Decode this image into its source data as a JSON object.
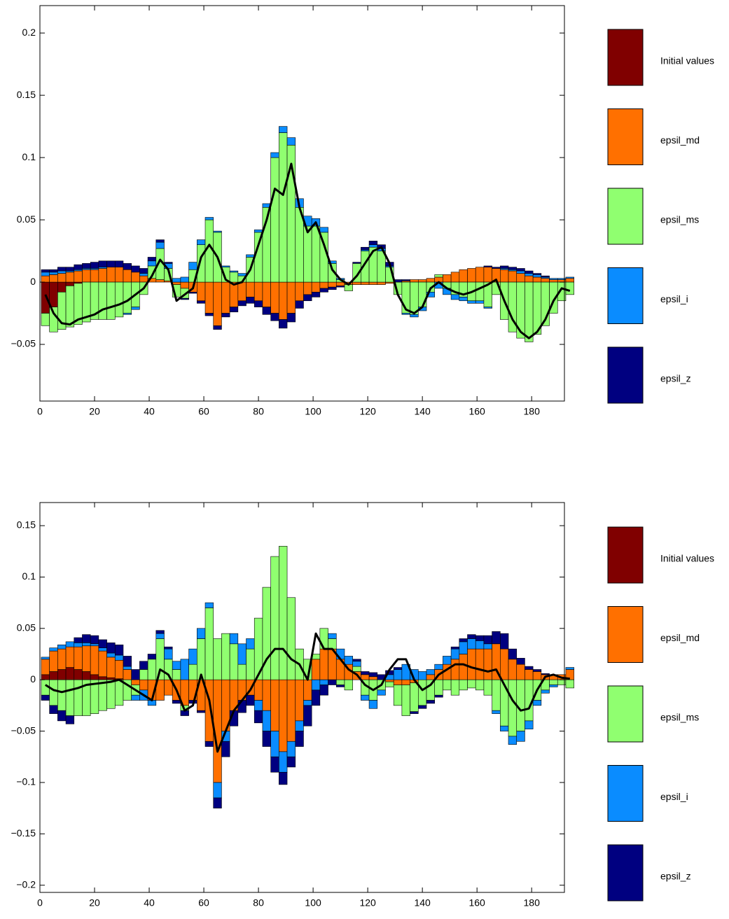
{
  "chart_data": [
    {
      "type": "bar",
      "stacked": true,
      "legend": "right",
      "grid": false,
      "xlim": [
        0,
        192
      ],
      "ylim": [
        -0.0955,
        0.222
      ],
      "xticks": [
        0,
        20,
        40,
        60,
        80,
        100,
        120,
        140,
        160,
        180
      ],
      "yticks": [
        {
          "value": -0.05,
          "label": "−0.05"
        },
        0,
        0.05,
        0.1,
        0.15,
        0.2
      ],
      "x": [
        2,
        5,
        8,
        11,
        14,
        17,
        20,
        23,
        26,
        29,
        32,
        35,
        38,
        41,
        44,
        47,
        50,
        53,
        56,
        59,
        62,
        65,
        68,
        71,
        74,
        77,
        80,
        83,
        86,
        89,
        92,
        95,
        98,
        101,
        104,
        107,
        110,
        113,
        116,
        119,
        122,
        125,
        128,
        131,
        134,
        137,
        140,
        143,
        146,
        149,
        152,
        155,
        158,
        161,
        164,
        167,
        170,
        173,
        176,
        179,
        182,
        185,
        188,
        191,
        194
      ],
      "series": [
        {
          "name": "Initial values",
          "color": "#800000",
          "values": [
            -0.025,
            -0.02,
            -0.008,
            -0.003,
            -0.001,
            0,
            0,
            0,
            0,
            0,
            0,
            0,
            0,
            0,
            0,
            0,
            0,
            0,
            0,
            0,
            0,
            0,
            0,
            0,
            0,
            0,
            0,
            0,
            0,
            0,
            0,
            0,
            0,
            0,
            0,
            0,
            0,
            0,
            0,
            0,
            0,
            0,
            0,
            0,
            0,
            0,
            0,
            0,
            0,
            0,
            0,
            0,
            0,
            0,
            0,
            0,
            0,
            0,
            0,
            0,
            0,
            0,
            0,
            0,
            0
          ]
        },
        {
          "name": "epsil_md",
          "color": "#ff7000",
          "values": [
            0.005,
            0.006,
            0.007,
            0.008,
            0.009,
            0.01,
            0.01,
            0.011,
            0.012,
            0.012,
            0.01,
            0.008,
            0.005,
            0.003,
            0.002,
            0.001,
            -0.002,
            -0.005,
            -0.008,
            -0.015,
            -0.025,
            -0.035,
            -0.025,
            -0.02,
            -0.015,
            -0.012,
            -0.015,
            -0.02,
            -0.025,
            -0.03,
            -0.025,
            -0.015,
            -0.01,
            -0.008,
            -0.005,
            -0.004,
            -0.003,
            -0.002,
            -0.002,
            -0.002,
            -0.002,
            -0.002,
            -0.001,
            0,
            0.001,
            0.002,
            0.002,
            0.003,
            0.004,
            0.006,
            0.008,
            0.01,
            0.011,
            0.012,
            0.012,
            0.011,
            0.01,
            0.009,
            0.007,
            0.005,
            0.004,
            0.003,
            0.002,
            0.002,
            0.003
          ]
        },
        {
          "name": "epsil_ms",
          "color": "#90ff70",
          "values": [
            -0.01,
            -0.02,
            -0.03,
            -0.033,
            -0.033,
            -0.032,
            -0.03,
            -0.03,
            -0.03,
            -0.028,
            -0.025,
            -0.02,
            -0.01,
            0.01,
            0.025,
            0.01,
            -0.01,
            -0.008,
            0.01,
            0.03,
            0.05,
            0.04,
            0.012,
            0.008,
            0.005,
            0.02,
            0.04,
            0.06,
            0.1,
            0.12,
            0.11,
            0.06,
            0.045,
            0.045,
            0.04,
            0.015,
            0.002,
            -0.005,
            0.015,
            0.025,
            0.028,
            0.025,
            0.012,
            -0.01,
            -0.025,
            -0.026,
            -0.02,
            -0.008,
            0.002,
            -0.005,
            -0.01,
            -0.012,
            -0.015,
            -0.015,
            -0.02,
            -0.01,
            -0.03,
            -0.04,
            -0.045,
            -0.048,
            -0.042,
            -0.035,
            -0.025,
            -0.015,
            -0.01
          ]
        },
        {
          "name": "epsil_i",
          "color": "#0a8cff",
          "values": [
            0.003,
            0.002,
            0.002,
            0.001,
            0.001,
            0.001,
            0.001,
            0.001,
            0,
            0,
            -0.001,
            -0.002,
            0.002,
            0.004,
            0.005,
            0.004,
            0.003,
            0.004,
            0.006,
            0.004,
            0.002,
            0.001,
            0.001,
            0.001,
            0.002,
            0.002,
            0.002,
            0.003,
            0.004,
            0.005,
            0.006,
            0.007,
            0.008,
            0.006,
            0.004,
            0.002,
            0.001,
            0,
            0,
            0.001,
            0.002,
            0.002,
            0.001,
            0,
            -0.001,
            -0.002,
            -0.003,
            -0.004,
            -0.005,
            -0.005,
            -0.004,
            -0.003,
            -0.002,
            -0.002,
            -0.001,
            0,
            0.001,
            0.001,
            0.002,
            0.002,
            0.002,
            0.001,
            0.001,
            0.001,
            0.001
          ]
        },
        {
          "name": "epsil_z",
          "color": "#000080",
          "values": [
            0.002,
            0.002,
            0.003,
            0.003,
            0.004,
            0.004,
            0.005,
            0.005,
            0.005,
            0.005,
            0.005,
            0.005,
            0.004,
            0.003,
            0.002,
            0.001,
            0,
            -0.001,
            -0.001,
            -0.002,
            -0.002,
            -0.003,
            -0.003,
            -0.004,
            -0.004,
            -0.005,
            -0.005,
            -0.006,
            -0.006,
            -0.007,
            -0.007,
            -0.006,
            -0.005,
            -0.004,
            -0.003,
            -0.002,
            -0.001,
            0,
            0.001,
            0.002,
            0.003,
            0.003,
            0.003,
            0.002,
            0.001,
            0,
            0,
            0,
            0,
            0,
            0,
            0,
            0,
            0,
            0.001,
            0.001,
            0.002,
            0.002,
            0.002,
            0.002,
            0.001,
            0.001,
            0,
            0,
            0
          ]
        }
      ],
      "line": {
        "color": "#000000",
        "values": [
          -0.01,
          -0.025,
          -0.033,
          -0.034,
          -0.03,
          -0.028,
          -0.026,
          -0.022,
          -0.02,
          -0.018,
          -0.015,
          -0.01,
          -0.005,
          0.005,
          0.018,
          0.01,
          -0.015,
          -0.01,
          -0.005,
          0.02,
          0.03,
          0.02,
          0.002,
          -0.002,
          0,
          0.01,
          0.03,
          0.05,
          0.075,
          0.07,
          0.095,
          0.06,
          0.04,
          0.048,
          0.03,
          0.01,
          0.002,
          -0.002,
          0.005,
          0.015,
          0.025,
          0.028,
          0.015,
          -0.01,
          -0.022,
          -0.025,
          -0.02,
          -0.005,
          0,
          -0.005,
          -0.008,
          -0.01,
          -0.008,
          -0.005,
          -0.002,
          0.002,
          -0.015,
          -0.03,
          -0.04,
          -0.045,
          -0.04,
          -0.03,
          -0.015,
          -0.005,
          -0.007
        ]
      }
    },
    {
      "type": "bar",
      "stacked": true,
      "legend": "right",
      "grid": false,
      "xlim": [
        0,
        192
      ],
      "ylim": [
        -0.207,
        0.1725
      ],
      "xticks": [
        0,
        20,
        40,
        60,
        80,
        100,
        120,
        140,
        160,
        180
      ],
      "yticks": [
        {
          "value": -0.2,
          "label": "−0.2"
        },
        {
          "value": -0.15,
          "label": "−0.15"
        },
        {
          "value": -0.1,
          "label": "−0.1"
        },
        {
          "value": -0.05,
          "label": "−0.05"
        },
        0,
        0.05,
        0.1,
        0.15
      ],
      "x": [
        2,
        5,
        8,
        11,
        14,
        17,
        20,
        23,
        26,
        29,
        32,
        35,
        38,
        41,
        44,
        47,
        50,
        53,
        56,
        59,
        62,
        65,
        68,
        71,
        74,
        77,
        80,
        83,
        86,
        89,
        92,
        95,
        98,
        101,
        104,
        107,
        110,
        113,
        116,
        119,
        122,
        125,
        128,
        131,
        134,
        137,
        140,
        143,
        146,
        149,
        152,
        155,
        158,
        161,
        164,
        167,
        170,
        173,
        176,
        179,
        182,
        185,
        188,
        191,
        194
      ],
      "series": [
        {
          "name": "Initial values",
          "color": "#800000",
          "values": [
            0.005,
            0.008,
            0.01,
            0.012,
            0.01,
            0.008,
            0.005,
            0.003,
            0.002,
            0.001,
            0,
            0,
            0,
            0,
            0,
            0,
            0,
            0,
            0,
            0,
            0,
            0,
            0,
            0,
            0,
            0,
            0,
            0,
            0,
            0,
            0,
            0,
            0,
            0,
            0,
            0,
            0,
            0,
            0,
            0,
            0,
            0,
            0,
            0,
            0,
            0,
            0,
            0,
            0,
            0,
            0,
            0,
            0,
            0,
            0,
            0,
            0,
            0,
            0,
            0,
            0,
            0,
            0,
            0,
            0
          ]
        },
        {
          "name": "epsil_md",
          "color": "#ff7000",
          "values": [
            0.015,
            0.02,
            0.02,
            0.02,
            0.022,
            0.025,
            0.028,
            0.025,
            0.02,
            0.018,
            0.01,
            -0.005,
            -0.01,
            -0.02,
            -0.02,
            -0.015,
            -0.02,
            -0.025,
            -0.02,
            -0.03,
            -0.06,
            -0.1,
            -0.05,
            -0.03,
            -0.02,
            -0.015,
            -0.02,
            -0.03,
            -0.05,
            -0.07,
            -0.06,
            -0.04,
            -0.02,
            0.02,
            0.03,
            0.03,
            0.02,
            0.015,
            0.008,
            0.005,
            0.003,
            0,
            -0.002,
            -0.005,
            -0.005,
            -0.003,
            0,
            0.005,
            0.01,
            0.015,
            0.02,
            0.025,
            0.03,
            0.03,
            0.03,
            0.035,
            0.03,
            0.02,
            0.015,
            0.01,
            0.008,
            0.005,
            0.005,
            0.005,
            0.01
          ]
        },
        {
          "name": "epsil_ms",
          "color": "#90ff70",
          "values": [
            -0.015,
            -0.025,
            -0.03,
            -0.035,
            -0.035,
            -0.035,
            -0.033,
            -0.03,
            -0.028,
            -0.025,
            -0.02,
            -0.01,
            0.01,
            0.02,
            0.04,
            0.02,
            0.01,
            -0.005,
            0.015,
            0.04,
            0.07,
            0.04,
            0.045,
            0.035,
            0.015,
            0.03,
            0.06,
            0.09,
            0.12,
            0.13,
            0.08,
            0.03,
            0.02,
            0.005,
            0.02,
            0.01,
            -0.005,
            -0.01,
            0.005,
            -0.015,
            -0.02,
            -0.01,
            -0.005,
            -0.02,
            -0.03,
            -0.028,
            -0.025,
            -0.02,
            -0.015,
            -0.01,
            -0.015,
            -0.01,
            -0.008,
            -0.01,
            -0.015,
            -0.03,
            -0.045,
            -0.055,
            -0.05,
            -0.04,
            -0.02,
            -0.01,
            -0.005,
            -0.005,
            -0.008
          ]
        },
        {
          "name": "epsil_i",
          "color": "#0a8cff",
          "values": [
            0.002,
            0.003,
            0.004,
            0.005,
            0.004,
            0.003,
            0.002,
            0.003,
            0.004,
            0.005,
            0.003,
            -0.005,
            -0.01,
            -0.005,
            0.005,
            0.01,
            0.008,
            0.02,
            0.015,
            0.01,
            0.005,
            -0.015,
            -0.01,
            0.01,
            0.02,
            0.01,
            -0.01,
            -0.02,
            -0.025,
            -0.02,
            -0.015,
            -0.01,
            -0.005,
            -0.01,
            -0.005,
            0.005,
            0.01,
            0.008,
            0.005,
            -0.005,
            -0.008,
            -0.005,
            0.005,
            0.01,
            0.015,
            0.01,
            0.008,
            0.005,
            0.005,
            0.008,
            0.01,
            0.012,
            0.01,
            0.008,
            0.005,
            -0.003,
            -0.005,
            -0.008,
            -0.01,
            -0.008,
            -0.005,
            -0.003,
            -0.002,
            0,
            0.002
          ]
        },
        {
          "name": "epsil_z",
          "color": "#000080",
          "values": [
            -0.005,
            -0.008,
            -0.01,
            -0.008,
            0.005,
            0.008,
            0.008,
            0.008,
            0.01,
            0.01,
            0.01,
            0.01,
            0.008,
            0.005,
            0.003,
            0.002,
            -0.003,
            -0.005,
            -0.003,
            -0.002,
            -0.005,
            -0.01,
            -0.015,
            -0.015,
            -0.012,
            -0.01,
            -0.012,
            -0.015,
            -0.015,
            -0.012,
            -0.01,
            -0.015,
            -0.02,
            -0.015,
            -0.01,
            -0.005,
            -0.002,
            0,
            0.002,
            0.003,
            0.004,
            0.005,
            0.004,
            0.002,
            0,
            -0.002,
            -0.003,
            -0.003,
            -0.002,
            0,
            0.002,
            0.003,
            0.004,
            0.005,
            0.008,
            0.012,
            0.015,
            0.01,
            0.006,
            0.003,
            0.002,
            0.001,
            0,
            0,
            0
          ]
        }
      ],
      "line": {
        "color": "#000000",
        "values": [
          -0.005,
          -0.01,
          -0.012,
          -0.01,
          -0.008,
          -0.005,
          -0.004,
          -0.003,
          -0.002,
          0,
          -0.005,
          -0.01,
          -0.015,
          -0.02,
          0.01,
          0.005,
          -0.01,
          -0.03,
          -0.025,
          0.005,
          -0.02,
          -0.07,
          -0.05,
          -0.03,
          -0.02,
          -0.01,
          0.005,
          0.02,
          0.03,
          0.03,
          0.02,
          0.015,
          0,
          0.045,
          0.03,
          0.03,
          0.02,
          0.01,
          0.005,
          -0.005,
          -0.01,
          -0.005,
          0.01,
          0.02,
          0.02,
          0,
          -0.01,
          -0.005,
          0.005,
          0.01,
          0.015,
          0.015,
          0.012,
          0.01,
          0.008,
          0.01,
          -0.005,
          -0.02,
          -0.03,
          -0.028,
          -0.01,
          0.003,
          0.005,
          0.002,
          0.001
        ]
      }
    }
  ]
}
